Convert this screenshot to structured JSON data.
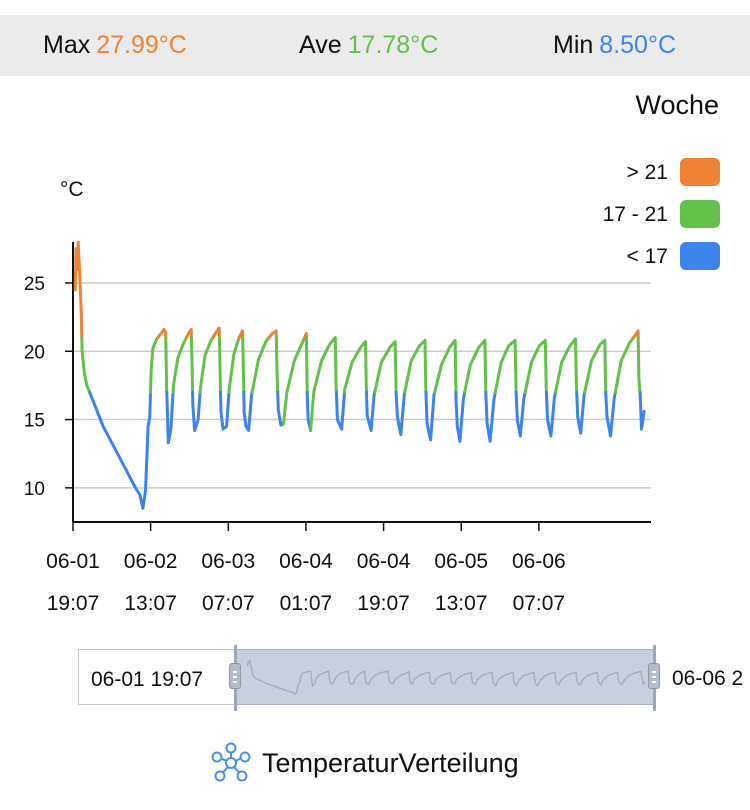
{
  "stats": {
    "max_label": "Max",
    "max_value": "27.99°C",
    "ave_label": "Ave",
    "ave_value": "17.78°C",
    "min_label": "Min",
    "min_value": "8.50°C"
  },
  "colors": {
    "hot": "#ef8233",
    "mid": "#63c14a",
    "cold": "#3d83ee",
    "stats_bg": "#ebebeb",
    "grid": "#cccccc"
  },
  "period_label": "Woche",
  "legend": [
    {
      "label": "> 21",
      "color": "#ef8233"
    },
    {
      "label": "17 - 21",
      "color": "#63c14a"
    },
    {
      "label": "< 17",
      "color": "#3d83ee"
    }
  ],
  "slider": {
    "start_label": "06-01 19:07",
    "end_label": "06-06 2"
  },
  "footer": {
    "icon": "distribution-network-icon",
    "label": "TemperaturVerteilung"
  },
  "chart_data": {
    "type": "line",
    "ylabel": "°C",
    "ylim": [
      7.5,
      28
    ],
    "yticks": [
      10,
      15,
      20,
      25
    ],
    "grid": true,
    "x_unit": "hours after 06-01 19:07",
    "x_range": [
      0,
      134
    ],
    "x_ticks": [
      {
        "x": 0,
        "date": "06-01",
        "time": "19:07"
      },
      {
        "x": 18,
        "date": "06-02",
        "time": "13:07"
      },
      {
        "x": 36,
        "date": "06-03",
        "time": "07:07"
      },
      {
        "x": 54,
        "date": "06-04",
        "time": "01:07"
      },
      {
        "x": 72,
        "date": "06-04",
        "time": "19:07"
      },
      {
        "x": 90,
        "date": "06-05",
        "time": "13:07"
      },
      {
        "x": 108,
        "date": "06-06",
        "time": "07:07"
      }
    ],
    "thresholds": {
      "low": 17,
      "high": 21
    },
    "series": [
      {
        "values": [
          [
            0.5,
            24.5
          ],
          [
            0.7,
            27.5
          ],
          [
            0.9,
            26
          ],
          [
            1.2,
            27.99
          ],
          [
            1.5,
            26
          ],
          [
            1.9,
            23
          ],
          [
            2.1,
            20
          ],
          [
            2.6,
            18.5
          ],
          [
            3.2,
            17.5
          ],
          [
            4.5,
            16.5
          ],
          [
            7,
            14.5
          ],
          [
            9.5,
            13
          ],
          [
            12,
            11.5
          ],
          [
            14.5,
            10
          ],
          [
            15.5,
            9.5
          ],
          [
            16.2,
            8.5
          ],
          [
            16.8,
            9.8
          ],
          [
            17.4,
            14.5
          ],
          [
            17.8,
            15.2
          ],
          [
            18.1,
            18.5
          ],
          [
            18.5,
            20.2
          ],
          [
            19.4,
            20.9
          ],
          [
            20.4,
            21.3
          ],
          [
            21.1,
            21.6
          ],
          [
            21.5,
            21.4
          ],
          [
            21.7,
            17.5
          ],
          [
            22.1,
            13.3
          ],
          [
            22.7,
            14.3
          ],
          [
            23.3,
            17.5
          ],
          [
            24.3,
            19.5
          ],
          [
            25.5,
            20.5
          ],
          [
            26.8,
            21.3
          ],
          [
            27.4,
            21.6
          ],
          [
            27.6,
            19
          ],
          [
            27.8,
            16
          ],
          [
            28.2,
            14.2
          ],
          [
            29,
            15
          ],
          [
            29.5,
            17.2
          ],
          [
            30.6,
            19.7
          ],
          [
            32,
            20.8
          ],
          [
            33.2,
            21.4
          ],
          [
            33.9,
            21.7
          ],
          [
            34.1,
            18.5
          ],
          [
            34.3,
            15.5
          ],
          [
            34.8,
            14.3
          ],
          [
            35.6,
            14.5
          ],
          [
            36.2,
            17.2
          ],
          [
            37.3,
            19.8
          ],
          [
            38.5,
            21
          ],
          [
            39.3,
            21.5
          ],
          [
            39.5,
            18.5
          ],
          [
            39.7,
            15.5
          ],
          [
            40.1,
            14.5
          ],
          [
            40.7,
            14.2
          ],
          [
            41.4,
            16.8
          ],
          [
            43,
            19.4
          ],
          [
            44.7,
            20.7
          ],
          [
            46.2,
            21.3
          ],
          [
            47.1,
            21.5
          ],
          [
            47.3,
            18.5
          ],
          [
            47.6,
            15.7
          ],
          [
            48.2,
            14.6
          ],
          [
            48.8,
            14.7
          ],
          [
            49.6,
            17
          ],
          [
            51.3,
            19.3
          ],
          [
            53,
            20.5
          ],
          [
            54.1,
            21.3
          ],
          [
            54.3,
            17
          ],
          [
            54.5,
            15
          ],
          [
            55.1,
            14.2
          ],
          [
            55.8,
            17
          ],
          [
            57.6,
            19.3
          ],
          [
            59.5,
            20.5
          ],
          [
            60.8,
            21
          ],
          [
            61,
            17.5
          ],
          [
            61.3,
            15
          ],
          [
            62.3,
            14.3
          ],
          [
            63,
            17.2
          ],
          [
            64.7,
            19.2
          ],
          [
            66.7,
            20.3
          ],
          [
            67.8,
            20.7
          ],
          [
            68,
            17.5
          ],
          [
            68.2,
            15.3
          ],
          [
            69.1,
            14.2
          ],
          [
            69.8,
            16.8
          ],
          [
            71.5,
            19.2
          ],
          [
            73.5,
            20.3
          ],
          [
            74.7,
            20.7
          ],
          [
            74.9,
            17
          ],
          [
            75.2,
            15.2
          ],
          [
            76,
            13.9
          ],
          [
            76.8,
            16.8
          ],
          [
            78.4,
            19.3
          ],
          [
            80.3,
            20.4
          ],
          [
            81.6,
            20.8
          ],
          [
            81.8,
            17.2
          ],
          [
            82.1,
            14.7
          ],
          [
            82.9,
            13.5
          ],
          [
            83.7,
            16.8
          ],
          [
            85.4,
            19
          ],
          [
            87.3,
            20.3
          ],
          [
            88.6,
            20.8
          ],
          [
            88.8,
            16.5
          ],
          [
            89.1,
            14.5
          ],
          [
            89.7,
            13.4
          ],
          [
            90.5,
            16.5
          ],
          [
            92.1,
            19
          ],
          [
            94.1,
            20.3
          ],
          [
            95.5,
            20.8
          ],
          [
            95.7,
            17
          ],
          [
            96,
            14.7
          ],
          [
            96.7,
            13.4
          ],
          [
            97.6,
            16.5
          ],
          [
            99.3,
            19.2
          ],
          [
            101,
            20.4
          ],
          [
            102.5,
            20.8
          ],
          [
            102.7,
            17.2
          ],
          [
            103,
            15
          ],
          [
            103.7,
            13.8
          ],
          [
            104.5,
            16.5
          ],
          [
            106.3,
            19.2
          ],
          [
            108.1,
            20.4
          ],
          [
            109.5,
            20.8
          ],
          [
            109.7,
            17.4
          ],
          [
            110,
            15
          ],
          [
            110.8,
            13.8
          ],
          [
            111.6,
            16.6
          ],
          [
            113.3,
            19.2
          ],
          [
            115.2,
            20.4
          ],
          [
            116.5,
            20.9
          ],
          [
            116.7,
            17.5
          ],
          [
            117,
            15.2
          ],
          [
            117.7,
            14
          ],
          [
            118.5,
            16.8
          ],
          [
            120.2,
            19.3
          ],
          [
            122.2,
            20.5
          ],
          [
            123.3,
            20.8
          ],
          [
            123.5,
            17
          ],
          [
            123.8,
            15.2
          ],
          [
            124.6,
            13.8
          ],
          [
            125.5,
            16.6
          ],
          [
            127.1,
            19.3
          ],
          [
            129,
            20.6
          ],
          [
            130.4,
            21.2
          ],
          [
            131,
            21.5
          ],
          [
            131.2,
            18
          ],
          [
            131.5,
            16.8
          ],
          [
            131.8,
            14.3
          ],
          [
            132.4,
            15.6
          ]
        ]
      }
    ]
  }
}
